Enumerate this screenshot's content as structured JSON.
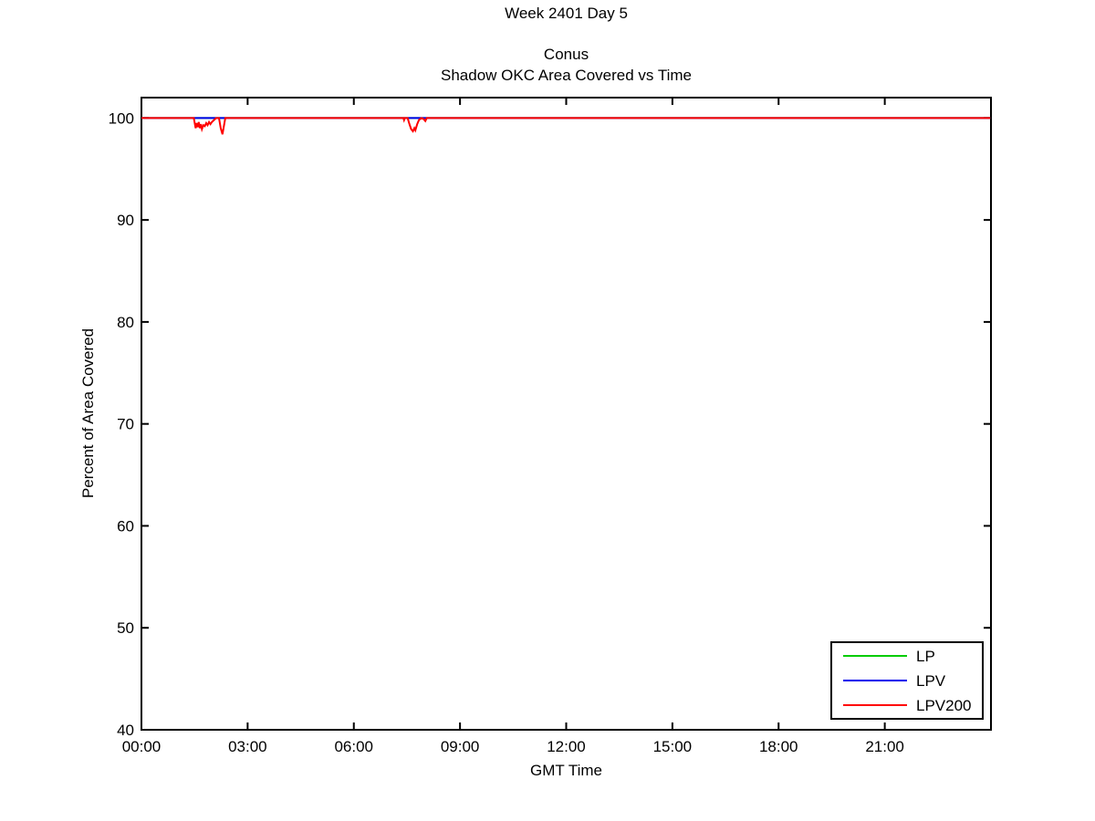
{
  "chart_data": {
    "type": "line",
    "suptitle": "Week 2401 Day 5",
    "title_lines": [
      "Conus",
      "Shadow OKC Area Covered vs Time"
    ],
    "xlabel": "GMT Time",
    "ylabel": "Percent of Area Covered",
    "xlim": [
      0,
      24
    ],
    "ylim": [
      40,
      102
    ],
    "x_ticks": [
      0,
      3,
      6,
      9,
      12,
      15,
      18,
      21
    ],
    "x_tick_labels": [
      "00:00",
      "03:00",
      "06:00",
      "09:00",
      "12:00",
      "15:00",
      "18:00",
      "21:00"
    ],
    "y_ticks": [
      40,
      50,
      60,
      70,
      80,
      90,
      100
    ],
    "grid": false,
    "box": true,
    "legend_position": "lower-right",
    "axis_color": "#000000",
    "background_color": "#ffffff",
    "series": [
      {
        "name": "LP",
        "color": "#00cc00",
        "points": [
          [
            0,
            100
          ],
          [
            23.98,
            100
          ]
        ]
      },
      {
        "name": "LPV",
        "color": "#0000ee",
        "points": [
          [
            0,
            100
          ],
          [
            23.98,
            100
          ]
        ]
      },
      {
        "name": "LPV200",
        "color": "#ff0000",
        "points": [
          [
            0,
            100
          ],
          [
            1.48,
            100
          ],
          [
            1.51,
            99.4
          ],
          [
            1.53,
            99.0
          ],
          [
            1.56,
            99.5
          ],
          [
            1.59,
            99.1
          ],
          [
            1.62,
            99.6
          ],
          [
            1.65,
            99.0
          ],
          [
            1.68,
            99.4
          ],
          [
            1.71,
            98.9
          ],
          [
            1.75,
            99.3
          ],
          [
            1.79,
            99.2
          ],
          [
            1.83,
            99.5
          ],
          [
            1.87,
            99.3
          ],
          [
            1.91,
            99.6
          ],
          [
            1.95,
            99.4
          ],
          [
            1.99,
            99.6
          ],
          [
            2.05,
            99.8
          ],
          [
            2.11,
            100
          ],
          [
            2.19,
            100
          ],
          [
            2.24,
            99.0
          ],
          [
            2.29,
            98.4
          ],
          [
            2.37,
            100
          ],
          [
            7.4,
            100
          ],
          [
            7.42,
            99.8
          ],
          [
            7.44,
            100
          ],
          [
            7.52,
            100
          ],
          [
            7.57,
            99.4
          ],
          [
            7.62,
            98.9
          ],
          [
            7.67,
            98.7
          ],
          [
            7.71,
            99.0
          ],
          [
            7.74,
            98.8
          ],
          [
            7.79,
            99.4
          ],
          [
            7.84,
            99.8
          ],
          [
            7.91,
            100
          ],
          [
            7.97,
            99.9
          ],
          [
            8.02,
            99.7
          ],
          [
            8.06,
            100
          ],
          [
            23.98,
            100
          ]
        ]
      }
    ]
  }
}
